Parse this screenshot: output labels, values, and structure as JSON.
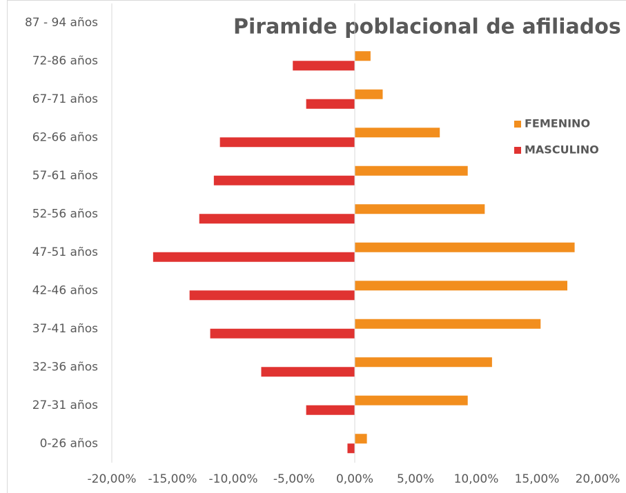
{
  "chart_data": {
    "type": "bar",
    "orientation": "horizontal",
    "title": "Piramide poblacional de afiliados",
    "categories": [
      "0-26 años",
      "27-31 años",
      "32-36 años",
      "37-41 años",
      "42-46 años",
      "47-51 años",
      "52-56 años",
      "57-61 años",
      "62-66 años",
      "67-71 años",
      "72-86 años",
      "87 - 94 años"
    ],
    "series": [
      {
        "name": "FEMENINO",
        "color": "#f28e1e",
        "values": [
          1.0,
          9.3,
          11.3,
          15.3,
          17.5,
          18.1,
          10.7,
          9.3,
          7.0,
          2.3,
          1.3,
          0
        ]
      },
      {
        "name": "MASCULINO",
        "color": "#e03331",
        "values": [
          -0.6,
          -4.0,
          -7.7,
          -11.9,
          -13.6,
          -16.6,
          -12.8,
          -11.6,
          -11.1,
          -4.0,
          -5.1,
          0
        ]
      }
    ],
    "xlim": [
      -20,
      20
    ],
    "xticks": [
      {
        "value": -20,
        "label": "-20,00%"
      },
      {
        "value": -15,
        "label": "-15,00%"
      },
      {
        "value": -10,
        "label": "-10,00%"
      },
      {
        "value": -5,
        "label": "-5,00%"
      },
      {
        "value": 0,
        "label": "0,00%"
      },
      {
        "value": 5,
        "label": "5,00%"
      },
      {
        "value": 10,
        "label": "10,00%"
      },
      {
        "value": 15,
        "label": "15,00%"
      },
      {
        "value": 20,
        "label": "20,00%"
      }
    ],
    "grid": false,
    "legend": "right"
  }
}
